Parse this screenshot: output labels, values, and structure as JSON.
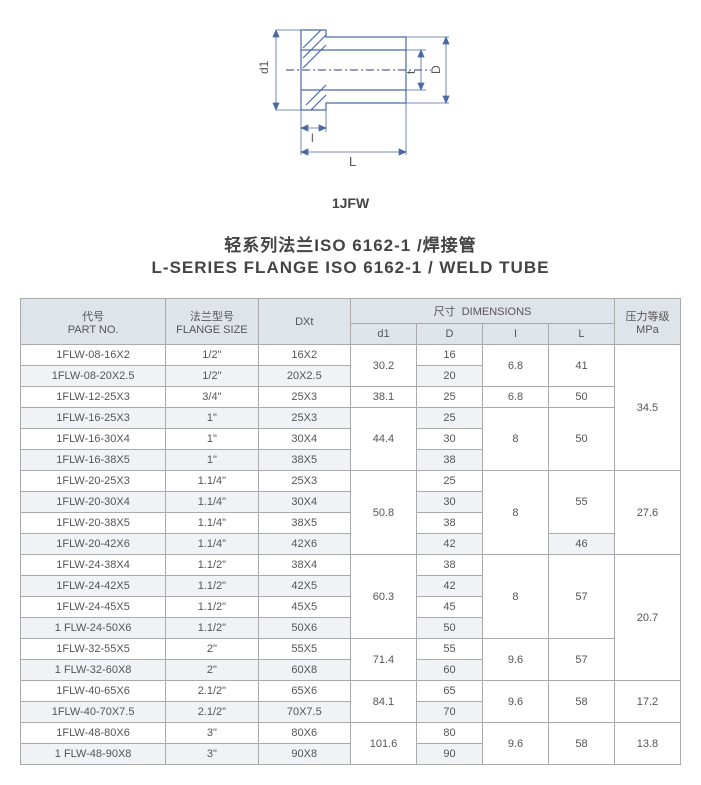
{
  "figure": {
    "label": "1JFW",
    "dims": {
      "d1": "d1",
      "t": "t",
      "D": "D",
      "l": "l",
      "L": "L"
    },
    "stroke": "#4a6aa5",
    "dim_stroke": "#4a6aa5"
  },
  "title": {
    "cn": "轻系列法兰ISO 6162-1 /焊接管",
    "en": "L-SERIES FLANGE ISO 6162-1 / WELD TUBE"
  },
  "table": {
    "headers": {
      "part_no_cn": "代号",
      "part_no_en": "PART NO.",
      "flange_cn": "法兰型号",
      "flange_en": "FLANGE SIZE",
      "dxt": "DXt",
      "dim_cn": "尺寸",
      "dim_en": "DIMENSIONS",
      "d1": "d1",
      "D": "D",
      "I": "I",
      "L": "L",
      "mpa_cn": "压力等级",
      "mpa_en": "MPa"
    },
    "rows": [
      {
        "pn": "1FLW-08-16X2",
        "fs": "1/2\"",
        "dxt": "16X2",
        "d1": "30.2",
        "d1_span": 2,
        "D": "16",
        "I": "6.8",
        "I_span": 2,
        "L": "41",
        "L_span": 2,
        "mpa": "34.5",
        "mpa_span": 6
      },
      {
        "pn": "1FLW-08-20X2.5",
        "fs": "1/2\"",
        "dxt": "20X2.5",
        "D": "20"
      },
      {
        "pn": "1FLW-12-25X3",
        "fs": "3/4\"",
        "dxt": "25X3",
        "d1": "38.1",
        "d1_span": 1,
        "D": "25",
        "I": "6.8",
        "I_span": 1,
        "L": "50",
        "L_span": 1
      },
      {
        "pn": "1FLW-16-25X3",
        "fs": "1\"",
        "dxt": "25X3",
        "d1": "44.4",
        "d1_span": 3,
        "D": "25",
        "I": "8",
        "I_span": 3,
        "L": "50",
        "L_span": 3
      },
      {
        "pn": "1FLW-16-30X4",
        "fs": "1\"",
        "dxt": "30X4",
        "D": "30"
      },
      {
        "pn": "1FLW-16-38X5",
        "fs": "1\"",
        "dxt": "38X5",
        "D": "38"
      },
      {
        "pn": "1FLW-20-25X3",
        "fs": "1.1/4\"",
        "dxt": "25X3",
        "d1": "50.8",
        "d1_span": 4,
        "D": "25",
        "I": "8",
        "I_span": 4,
        "L": "55",
        "L_span": 3,
        "mpa": "27.6",
        "mpa_span": 4
      },
      {
        "pn": "1FLW-20-30X4",
        "fs": "1.1/4\"",
        "dxt": "30X4",
        "D": "30"
      },
      {
        "pn": "1FLW-20-38X5",
        "fs": "1.1/4\"",
        "dxt": "38X5",
        "D": "38"
      },
      {
        "pn": "1FLW-20-42X6",
        "fs": "1.1/4\"",
        "dxt": "42X6",
        "D": "42",
        "L": "46",
        "L_span": 1
      },
      {
        "pn": "1FLW-24-38X4",
        "fs": "1.1/2\"",
        "dxt": "38X4",
        "d1": "60.3",
        "d1_span": 4,
        "D": "38",
        "I": "8",
        "I_span": 4,
        "L": "57",
        "L_span": 4,
        "mpa": "20.7",
        "mpa_span": 6
      },
      {
        "pn": "1FLW-24-42X5",
        "fs": "1.1/2\"",
        "dxt": "42X5",
        "D": "42"
      },
      {
        "pn": "1FLW-24-45X5",
        "fs": "1.1/2\"",
        "dxt": "45X5",
        "D": "45"
      },
      {
        "pn": "1 FLW-24-50X6",
        "fs": "1.1/2\"",
        "dxt": "50X6",
        "D": "50"
      },
      {
        "pn": "1FLW-32-55X5",
        "fs": "2\"",
        "dxt": "55X5",
        "d1": "71.4",
        "d1_span": 2,
        "D": "55",
        "I": "9.6",
        "I_span": 2,
        "L": "57",
        "L_span": 2
      },
      {
        "pn": "1 FLW-32-60X8",
        "fs": "2\"",
        "dxt": "60X8",
        "D": "60"
      },
      {
        "pn": "1FLW-40-65X6",
        "fs": "2.1/2\"",
        "dxt": "65X6",
        "d1": "84.1",
        "d1_span": 2,
        "D": "65",
        "I": "9.6",
        "I_span": 2,
        "L": "58",
        "L_span": 2,
        "mpa": "17.2",
        "mpa_span": 2
      },
      {
        "pn": "1FLW-40-70X7.5",
        "fs": "2.1/2\"",
        "dxt": "70X7.5",
        "D": "70"
      },
      {
        "pn": "1FLW-48-80X6",
        "fs": "3\"",
        "dxt": "80X6",
        "d1": "101.6",
        "d1_span": 2,
        "D": "80",
        "I": "9.6",
        "I_span": 2,
        "L": "58",
        "L_span": 2,
        "mpa": "13.8",
        "mpa_span": 2
      },
      {
        "pn": "1 FLW-48-90X8",
        "fs": "3\"",
        "dxt": "90X8",
        "D": "90"
      }
    ]
  }
}
